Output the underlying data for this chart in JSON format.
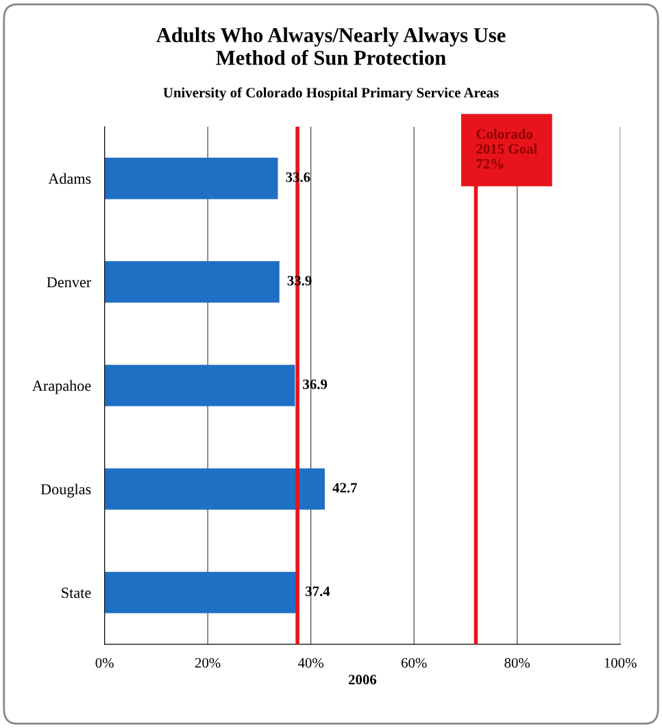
{
  "chart_data": {
    "type": "bar",
    "orientation": "horizontal",
    "title": "Adults Who Always/Nearly Always Use\nMethod of Sun Protection",
    "subtitle": "University of Colorado Hospital Primary Service Areas",
    "xlabel": "2006",
    "categories": [
      "Adams",
      "Denver",
      "Arapahoe",
      "Douglas",
      "State"
    ],
    "values": [
      33.6,
      33.9,
      36.9,
      42.7,
      37.4
    ],
    "color": "#1f6fc5",
    "data_labels": true,
    "xlim": [
      0,
      100
    ],
    "xticks": [
      {
        "value": 0,
        "label": "0%"
      },
      {
        "value": 20,
        "label": "20%"
      },
      {
        "value": 40,
        "label": "40%"
      },
      {
        "value": 60,
        "label": "60%"
      },
      {
        "value": 80,
        "label": "80%"
      },
      {
        "value": 100,
        "label": "100%"
      }
    ],
    "grid": "x",
    "legend": false,
    "ref_lines": [
      {
        "axis": "x",
        "value": 37.4,
        "color": "#e8141b"
      },
      {
        "axis": "x",
        "value": 72,
        "label": "Colorado\n2015 Goal\n72%",
        "color": "#e8141b"
      }
    ]
  }
}
